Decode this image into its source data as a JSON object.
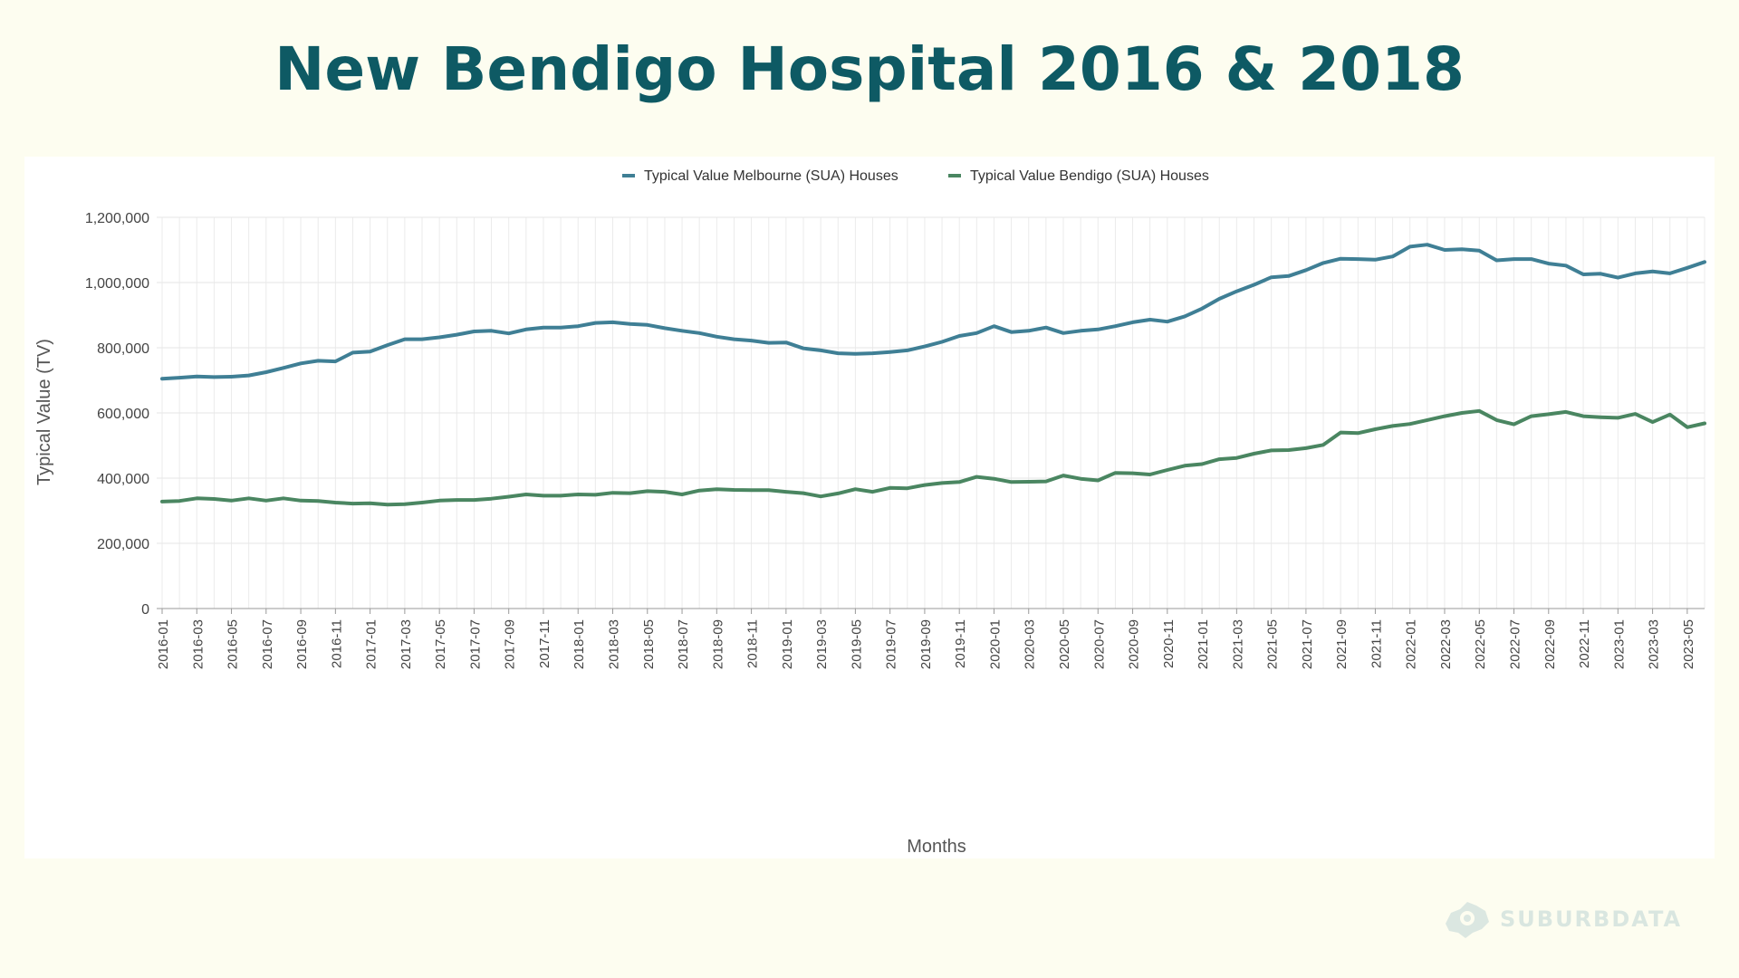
{
  "title": "New Bendigo Hospital 2016 & 2018",
  "watermark": {
    "text": "SUBURBDATA",
    "icon": "map-pin-icon"
  },
  "chart_data": {
    "type": "line",
    "xlabel": "Months",
    "ylabel": "Typical Value (TV)",
    "ylim": [
      0,
      1200000
    ],
    "yticks": [
      0,
      200000,
      400000,
      600000,
      800000,
      1000000,
      1200000
    ],
    "ytick_labels": [
      "0",
      "200,000",
      "400,000",
      "600,000",
      "800,000",
      "1,000,000",
      "1,200,000"
    ],
    "grid": true,
    "legend": "top-center",
    "x": [
      "2016-01",
      "2016-02",
      "2016-03",
      "2016-04",
      "2016-05",
      "2016-06",
      "2016-07",
      "2016-08",
      "2016-09",
      "2016-10",
      "2016-11",
      "2016-12",
      "2017-01",
      "2017-02",
      "2017-03",
      "2017-04",
      "2017-05",
      "2017-06",
      "2017-07",
      "2017-08",
      "2017-09",
      "2017-10",
      "2017-11",
      "2017-12",
      "2018-01",
      "2018-02",
      "2018-03",
      "2018-04",
      "2018-05",
      "2018-06",
      "2018-07",
      "2018-08",
      "2018-09",
      "2018-10",
      "2018-11",
      "2018-12",
      "2019-01",
      "2019-02",
      "2019-03",
      "2019-04",
      "2019-05",
      "2019-06",
      "2019-07",
      "2019-08",
      "2019-09",
      "2019-10",
      "2019-11",
      "2019-12",
      "2020-01",
      "2020-02",
      "2020-03",
      "2020-04",
      "2020-05",
      "2020-06",
      "2020-07",
      "2020-08",
      "2020-09",
      "2020-10",
      "2020-11",
      "2020-12",
      "2021-01",
      "2021-02",
      "2021-03",
      "2021-04",
      "2021-05",
      "2021-06",
      "2021-07",
      "2021-08",
      "2021-09",
      "2021-10",
      "2021-11",
      "2021-12",
      "2022-01",
      "2022-02",
      "2022-03",
      "2022-04",
      "2022-05",
      "2022-06",
      "2022-07",
      "2022-08",
      "2022-09",
      "2022-10",
      "2022-11",
      "2022-12",
      "2023-01",
      "2023-02",
      "2023-03",
      "2023-04",
      "2023-05",
      "2023-06"
    ],
    "x_tick_every": 2,
    "series": [
      {
        "name": "Typical Value Melbourne (SUA) Houses",
        "color": "#3f7f95",
        "values": [
          705000,
          708000,
          712000,
          710000,
          711000,
          715000,
          725000,
          738000,
          752000,
          760000,
          758000,
          785000,
          788000,
          808000,
          826000,
          826000,
          832000,
          840000,
          850000,
          852000,
          844000,
          856000,
          862000,
          862000,
          866000,
          876000,
          878000,
          873000,
          870000,
          860000,
          852000,
          845000,
          834000,
          826000,
          822000,
          815000,
          816000,
          798000,
          792000,
          783000,
          781000,
          783000,
          787000,
          792000,
          804000,
          818000,
          836000,
          845000,
          866000,
          848000,
          852000,
          862000,
          845000,
          852000,
          856000,
          866000,
          878000,
          886000,
          880000,
          896000,
          920000,
          950000,
          973000,
          993000,
          1016000,
          1020000,
          1038000,
          1060000,
          1073000,
          1072000,
          1070000,
          1080000,
          1110000,
          1116000,
          1100000,
          1102000,
          1098000,
          1068000,
          1072000,
          1072000,
          1058000,
          1052000,
          1025000,
          1027000,
          1015000,
          1028000,
          1034000,
          1028000,
          1045000,
          1063000
        ]
      },
      {
        "name": "Typical Value Bendigo (SUA) Houses",
        "color": "#4a8661",
        "values": [
          328000,
          330000,
          338000,
          336000,
          331000,
          338000,
          331000,
          338000,
          331000,
          330000,
          325000,
          322000,
          323000,
          319000,
          320000,
          325000,
          331000,
          333000,
          333000,
          337000,
          343000,
          350000,
          346000,
          346000,
          350000,
          349000,
          355000,
          354000,
          360000,
          358000,
          350000,
          362000,
          366000,
          364000,
          363000,
          363000,
          358000,
          354000,
          344000,
          353000,
          366000,
          358000,
          370000,
          369000,
          379000,
          385000,
          388000,
          404000,
          398000,
          388000,
          389000,
          390000,
          408000,
          398000,
          393000,
          416000,
          415000,
          411000,
          425000,
          438000,
          443000,
          458000,
          462000,
          475000,
          485000,
          486000,
          492000,
          502000,
          540000,
          538000,
          550000,
          560000,
          566000,
          578000,
          590000,
          600000,
          606000,
          578000,
          565000,
          590000,
          596000,
          603000,
          590000,
          587000,
          585000,
          597000,
          572000,
          595000,
          556000,
          568000
        ]
      }
    ]
  }
}
